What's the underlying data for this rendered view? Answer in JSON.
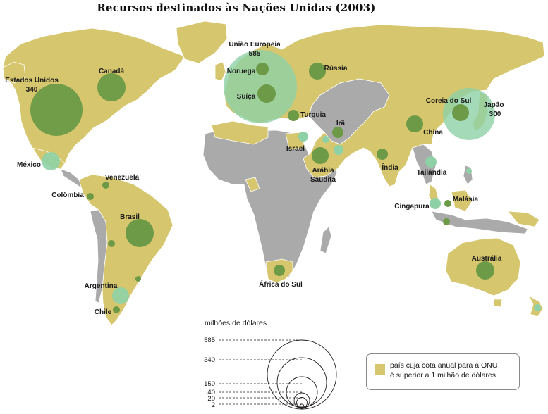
{
  "title": "Recursos destinados às Nações Unidas (2003)",
  "colors": {
    "member_land": "#d6c66e",
    "other_land": "#aaaaaa",
    "bubble_dark": "#6c9a46",
    "bubble_light": "#8fd1a6",
    "scale_circle": "#222222"
  },
  "country_labels": {
    "eu_name": "União Europeia",
    "eu_value": "585",
    "usa_name": "Estados Unidos",
    "usa_value": "340",
    "japan_name": "Japão",
    "japan_value": "300",
    "canada": "Canadá",
    "norway": "Noruega",
    "switzerland": "Suíça",
    "russia": "Rússia",
    "korea": "Coreia do Sul",
    "turkey": "Turquia",
    "iran": "Irã",
    "china": "China",
    "mexico": "México",
    "israel": "Israel",
    "saudi_line1": "Arábia",
    "saudi_line2": "Saudita",
    "india": "Índia",
    "thailand": "Tailândia",
    "venezuela": "Venezuela",
    "colombia": "Colômbia",
    "brazil": "Brasil",
    "singapore": "Cingapura",
    "malaysia": "Malásia",
    "argentina": "Argentina",
    "chile": "Chile",
    "south_africa": "África do Sul",
    "australia": "Austrália"
  },
  "scale": {
    "title": "milhões de dólares",
    "values": [
      "585",
      "340",
      "150",
      "40",
      "20",
      "2"
    ]
  },
  "legend": {
    "line1": "país cuja cota anual para a ONU",
    "line2": "é superior a 1 milhão de dólares"
  }
}
